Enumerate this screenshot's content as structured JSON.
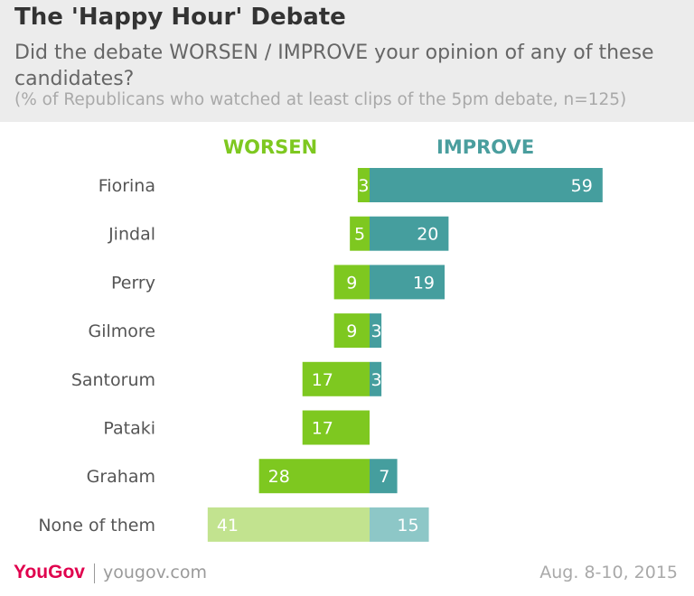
{
  "chart_data": {
    "type": "bar",
    "title": "The 'Happy Hour' Debate",
    "subtitle": "Did the debate WORSEN / IMPROVE your opinion of any of these candidates?",
    "note": "(% of Republicans who watched at least clips of the 5pm debate, n=125)",
    "orientation": "horizontal-diverging",
    "categories": [
      "Fiorina",
      "Jindal",
      "Perry",
      "Gilmore",
      "Santorum",
      "Pataki",
      "Graham",
      "None of them"
    ],
    "series": [
      {
        "name": "WORSEN",
        "values": [
          3,
          5,
          9,
          9,
          17,
          17,
          28,
          41
        ],
        "color": "#7ec820",
        "highlight_last_color": "#c2e38f"
      },
      {
        "name": "IMPROVE",
        "values": [
          59,
          20,
          19,
          3,
          3,
          0,
          7,
          15
        ],
        "color": "#459e9e",
        "highlight_last_color": "#8dc7c7"
      }
    ],
    "xlabel": "",
    "ylabel": "",
    "grid": false,
    "legend": "top"
  },
  "footer": {
    "brand": "YouGov",
    "site": "yougov.com",
    "date": "Aug. 8-10, 2015"
  }
}
